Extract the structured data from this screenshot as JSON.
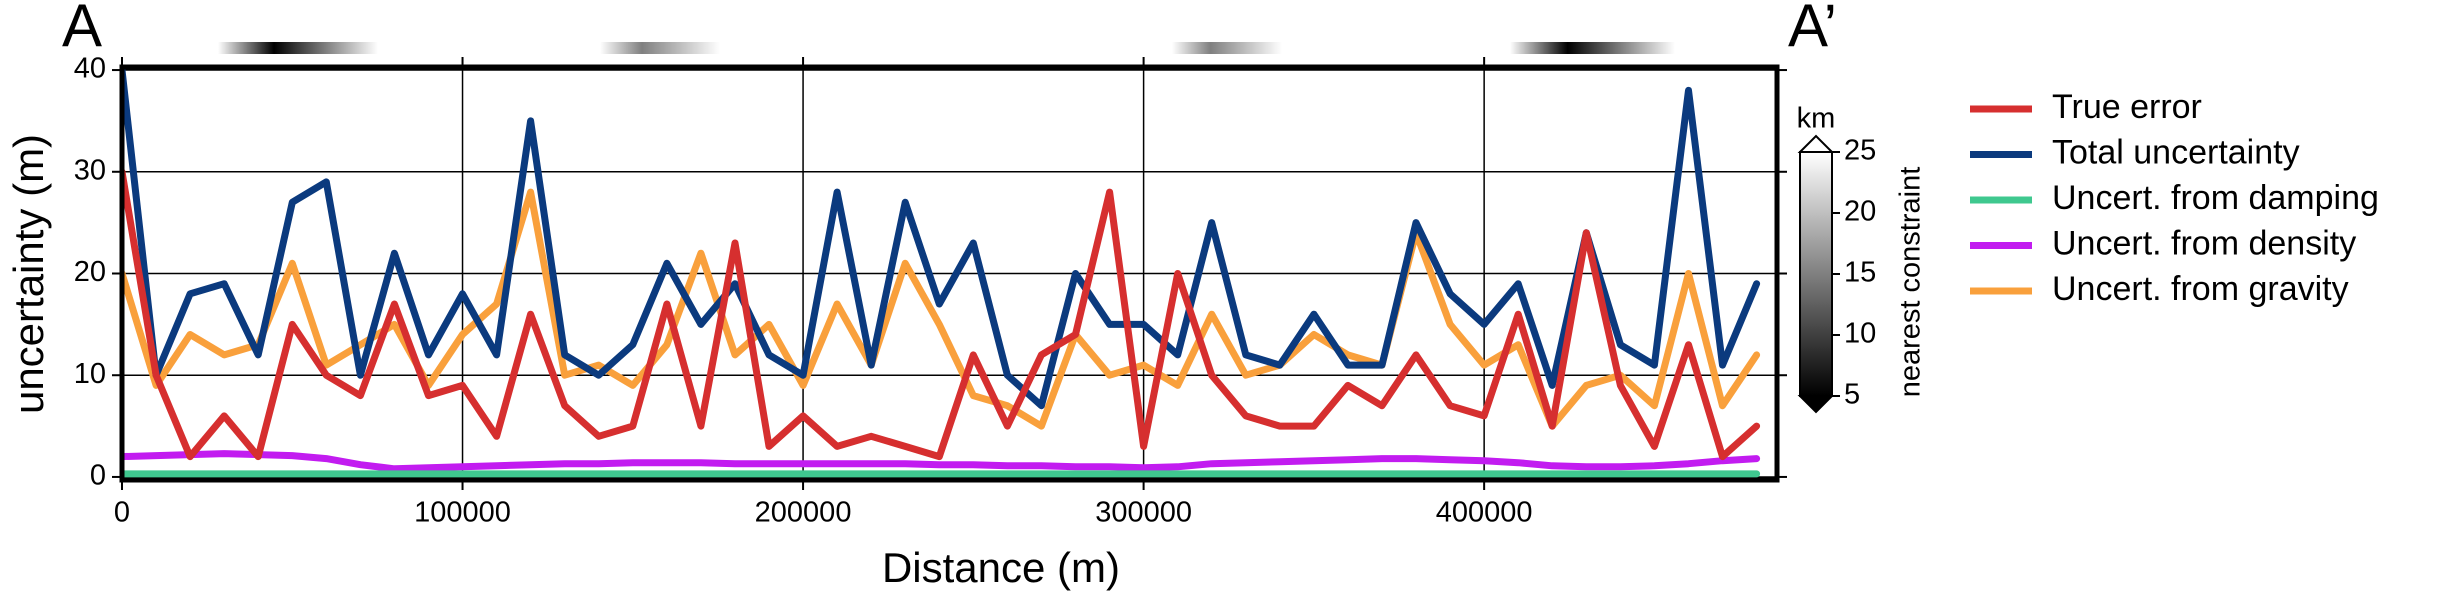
{
  "chart_data": {
    "type": "line",
    "left_label": "A",
    "right_label": "A’",
    "xlabel": "Distance (m)",
    "ylabel": "uncertainty (m)",
    "x": [
      0,
      10000,
      20000,
      30000,
      40000,
      50000,
      60000,
      70000,
      80000,
      90000,
      100000,
      110000,
      120000,
      130000,
      140000,
      150000,
      160000,
      170000,
      180000,
      190000,
      200000,
      210000,
      220000,
      230000,
      240000,
      250000,
      260000,
      270000,
      280000,
      290000,
      300000,
      310000,
      320000,
      330000,
      340000,
      350000,
      360000,
      370000,
      380000,
      390000,
      400000,
      410000,
      420000,
      430000,
      440000,
      450000,
      460000,
      470000,
      480000
    ],
    "xlim": [
      0,
      486000
    ],
    "xticks": [
      0,
      100000,
      200000,
      300000,
      400000
    ],
    "ylim": [
      -0.3,
      40.3
    ],
    "yticks": [
      0,
      10,
      20,
      30,
      40
    ],
    "grid": true,
    "series": [
      {
        "name": "True error",
        "color": "#d62f2f",
        "values": [
          30,
          10,
          2,
          6,
          2,
          15,
          10,
          8,
          17,
          8,
          9,
          4,
          16,
          7,
          4,
          5,
          17,
          5,
          23,
          3,
          6,
          3,
          4,
          3,
          2,
          12,
          5,
          12,
          14,
          28,
          3,
          20,
          10,
          6,
          5,
          5,
          9,
          7,
          12,
          7,
          6,
          16,
          5,
          24,
          9,
          3,
          13,
          2,
          5
        ]
      },
      {
        "name": "Total uncertainty",
        "color": "#0b3a7e",
        "values": [
          40,
          10,
          18,
          19,
          12,
          27,
          29,
          10,
          22,
          12,
          18,
          12,
          35,
          12,
          10,
          13,
          21,
          15,
          19,
          12,
          10,
          28,
          11,
          27,
          17,
          23,
          10,
          7,
          20,
          15,
          15,
          12,
          25,
          12,
          11,
          16,
          11,
          11,
          25,
          18,
          15,
          19,
          9,
          24,
          13,
          11,
          38,
          11,
          19
        ]
      },
      {
        "name": "Uncert. from damping",
        "color": "#3fc88f",
        "values": [
          0.3,
          0.3,
          0.3,
          0.3,
          0.3,
          0.3,
          0.3,
          0.3,
          0.3,
          0.3,
          0.3,
          0.3,
          0.3,
          0.3,
          0.3,
          0.3,
          0.3,
          0.3,
          0.3,
          0.3,
          0.3,
          0.3,
          0.3,
          0.3,
          0.3,
          0.3,
          0.3,
          0.3,
          0.3,
          0.3,
          0.3,
          0.3,
          0.3,
          0.3,
          0.3,
          0.3,
          0.3,
          0.3,
          0.3,
          0.3,
          0.3,
          0.3,
          0.3,
          0.3,
          0.3,
          0.3,
          0.3,
          0.3,
          0.3
        ]
      },
      {
        "name": "Uncert. from density",
        "color": "#c21cf0",
        "values": [
          2,
          2.1,
          2.2,
          2.3,
          2.2,
          2.1,
          1.8,
          1.2,
          0.8,
          0.9,
          1,
          1.1,
          1.2,
          1.3,
          1.3,
          1.4,
          1.4,
          1.4,
          1.3,
          1.3,
          1.3,
          1.3,
          1.3,
          1.3,
          1.2,
          1.2,
          1.1,
          1.1,
          1,
          1,
          0.9,
          1,
          1.3,
          1.4,
          1.5,
          1.6,
          1.7,
          1.8,
          1.8,
          1.7,
          1.6,
          1.4,
          1.1,
          1,
          1,
          1.1,
          1.3,
          1.6,
          1.8
        ]
      },
      {
        "name": "Uncert. from gravity",
        "color": "#f9a03c",
        "values": [
          20,
          9,
          14,
          12,
          13,
          21,
          11,
          13,
          15,
          9,
          14,
          17,
          28,
          10,
          11,
          9,
          13,
          22,
          12,
          15,
          9,
          17,
          11,
          21,
          15,
          8,
          7,
          5,
          14,
          10,
          11,
          9,
          16,
          10,
          11,
          14,
          12,
          11,
          24,
          15,
          11,
          13,
          5,
          9,
          10,
          7,
          20,
          7,
          12
        ]
      }
    ],
    "colorbar": {
      "unit": "km",
      "label": "nearest constraint",
      "lim": [
        5,
        25
      ],
      "ticks": [
        5,
        10,
        15,
        20,
        25
      ]
    }
  }
}
